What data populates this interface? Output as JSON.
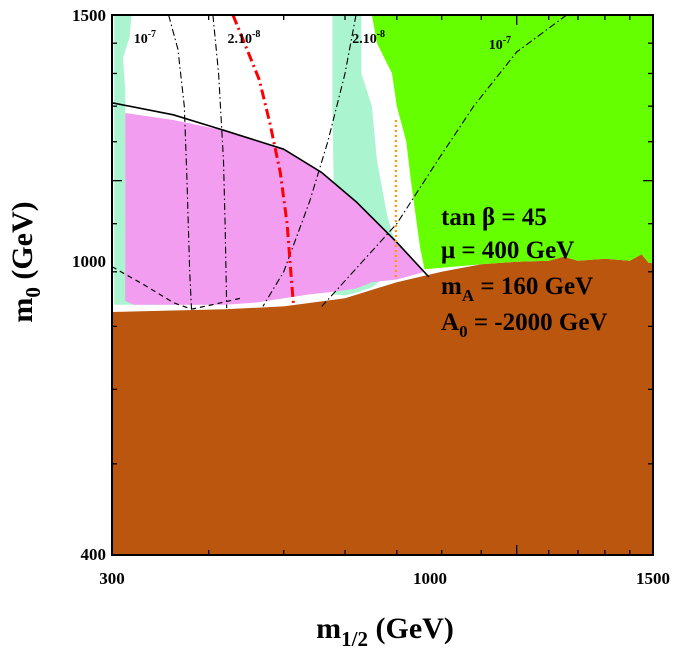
{
  "chart_data": {
    "type": "contour",
    "title": "",
    "xlabel": {
      "main": "m",
      "sub": "1/2",
      "rest": " (GeV)"
    },
    "ylabel": {
      "main": "m",
      "sub": "0",
      "rest": " (GeV)"
    },
    "xscale": "log",
    "yscale": "log",
    "xlim": [
      300,
      1500
    ],
    "ylim": [
      400,
      1500
    ],
    "x_tick_labels": [
      "300",
      "1000",
      "1500"
    ],
    "y_tick_labels": [
      "400",
      "1000",
      "1500"
    ],
    "x_minor_ticks": [
      400,
      500,
      600,
      700,
      800,
      900,
      1100,
      1200,
      1300,
      1400
    ],
    "y_minor_ticks": [
      500,
      600,
      700,
      800,
      900,
      1100,
      1200,
      1300,
      1400
    ],
    "parameters": [
      {
        "text": "tan β = 45"
      },
      {
        "main": "μ = 400 GeV"
      },
      {
        "main": "m",
        "sub": "A",
        "rest": " = 160 GeV"
      },
      {
        "main": "A",
        "sub": "0",
        "rest": " = -2000 GeV"
      }
    ],
    "colors": {
      "excluded_brown": "#bb560e",
      "green_region": "#66ff00",
      "light_green_band": "#aaf5cf",
      "pink_region": "#f29df0",
      "red_contour": "#ff0000",
      "orange_contour": "#ff9900",
      "black_contour": "#000000"
    },
    "regions": [
      {
        "name": "brown-excluded",
        "color": "#bb560e",
        "points": [
          [
            300,
            725
          ],
          [
            420,
            730
          ],
          [
            500,
            735
          ],
          [
            600,
            750
          ],
          [
            700,
            780
          ],
          [
            800,
            800
          ],
          [
            900,
            815
          ],
          [
            1000,
            820
          ],
          [
            1100,
            822
          ],
          [
            1150,
            830
          ],
          [
            1200,
            822
          ],
          [
            1300,
            826
          ],
          [
            1400,
            822
          ],
          [
            1450,
            835
          ],
          [
            1480,
            818
          ],
          [
            1500,
            818
          ],
          [
            1500,
            400
          ],
          [
            300,
            400
          ]
        ]
      },
      {
        "name": "light-green-band-left",
        "color": "#aaf5cf",
        "points": [
          [
            302,
            1500
          ],
          [
            318,
            1500
          ],
          [
            316,
            1420
          ],
          [
            310,
            1350
          ],
          [
            312,
            1250
          ],
          [
            312,
            1000
          ],
          [
            312,
            800
          ],
          [
            340,
            745
          ],
          [
            400,
            738
          ],
          [
            420,
            738
          ],
          [
            302,
            738
          ]
        ]
      },
      {
        "name": "light-green-band-mid",
        "color": "#aaf5cf",
        "points": [
          [
            578,
            1500
          ],
          [
            630,
            1500
          ],
          [
            630,
            1300
          ],
          [
            650,
            1200
          ],
          [
            660,
            1050
          ],
          [
            680,
            920
          ],
          [
            690,
            880
          ],
          [
            700,
            860
          ],
          [
            690,
            800
          ],
          [
            650,
            770
          ],
          [
            620,
            760
          ],
          [
            600,
            755
          ],
          [
            580,
            757
          ],
          [
            585,
            830
          ],
          [
            580,
            1000
          ],
          [
            578,
            1200
          ]
        ]
      },
      {
        "name": "green-region",
        "color": "#66ff00",
        "points": [
          [
            650,
            1500
          ],
          [
            1500,
            1500
          ],
          [
            1500,
            818
          ],
          [
            1480,
            818
          ],
          [
            1450,
            835
          ],
          [
            1400,
            822
          ],
          [
            1300,
            826
          ],
          [
            1200,
            822
          ],
          [
            1150,
            830
          ],
          [
            1100,
            822
          ],
          [
            1000,
            820
          ],
          [
            900,
            815
          ],
          [
            760,
            805
          ],
          [
            750,
            850
          ],
          [
            730,
            1000
          ],
          [
            720,
            1100
          ],
          [
            700,
            1200
          ],
          [
            690,
            1300
          ],
          [
            660,
            1400
          ]
        ]
      },
      {
        "name": "pink-region",
        "color": "#f29df0",
        "points": [
          [
            312,
            1180
          ],
          [
            360,
            1160
          ],
          [
            420,
            1130
          ],
          [
            500,
            1080
          ],
          [
            560,
            1020
          ],
          [
            620,
            950
          ],
          [
            700,
            860
          ],
          [
            760,
            800
          ],
          [
            740,
            795
          ],
          [
            700,
            785
          ],
          [
            650,
            780
          ],
          [
            620,
            768
          ],
          [
            580,
            762
          ],
          [
            540,
            757
          ],
          [
            500,
            750
          ],
          [
            460,
            742
          ],
          [
            420,
            738
          ],
          [
            360,
            738
          ],
          [
            320,
            738
          ],
          [
            312,
            745
          ],
          [
            312,
            900
          ]
        ]
      }
    ],
    "curves": [
      {
        "name": "black-solid-boundary",
        "style": "solid",
        "color": "#000000",
        "points": [
          [
            300,
            1210
          ],
          [
            360,
            1175
          ],
          [
            420,
            1130
          ],
          [
            500,
            1080
          ],
          [
            560,
            1020
          ],
          [
            620,
            950
          ],
          [
            700,
            860
          ],
          [
            770,
            790
          ]
        ]
      },
      {
        "name": "black-dashed-lower",
        "style": "dashed",
        "color": "#000000",
        "points": [
          [
            300,
            810
          ],
          [
            330,
            775
          ],
          [
            360,
            742
          ],
          [
            380,
            730
          ],
          [
            410,
            740
          ],
          [
            440,
            750
          ]
        ]
      },
      {
        "name": "contour-1e-7-left",
        "style": "dashdot",
        "color": "#000000",
        "label": "10^-7",
        "points": [
          [
            355,
            1500
          ],
          [
            365,
            1380
          ],
          [
            372,
            1200
          ],
          [
            375,
            1000
          ],
          [
            378,
            800
          ],
          [
            380,
            730
          ]
        ]
      },
      {
        "name": "contour-2e-8-left",
        "style": "dashdot",
        "color": "#000000",
        "label": "2.10^-8",
        "points": [
          [
            405,
            1500
          ],
          [
            412,
            1300
          ],
          [
            418,
            1050
          ],
          [
            420,
            900
          ],
          [
            422,
            732
          ]
        ]
      },
      {
        "name": "contour-2e-8-right",
        "style": "dashdot",
        "color": "#000000",
        "label": "2.10^-8",
        "points": [
          [
            620,
            1500
          ],
          [
            600,
            1300
          ],
          [
            570,
            1100
          ],
          [
            540,
            950
          ],
          [
            500,
            800
          ],
          [
            470,
            735
          ]
        ]
      },
      {
        "name": "contour-1e-7-right",
        "style": "dashdot",
        "color": "#000000",
        "label": "10^-7",
        "points": [
          [
            1160,
            1500
          ],
          [
            1000,
            1370
          ],
          [
            880,
            1200
          ],
          [
            790,
            1050
          ],
          [
            700,
            900
          ],
          [
            560,
            735
          ]
        ]
      },
      {
        "name": "red-dashdot-contour",
        "style": "dashdot-thick",
        "color": "#ff0000",
        "points": [
          [
            430,
            1500
          ],
          [
            445,
            1400
          ],
          [
            465,
            1280
          ],
          [
            480,
            1150
          ],
          [
            495,
            1020
          ],
          [
            505,
            900
          ],
          [
            510,
            810
          ],
          [
            515,
            735
          ]
        ]
      },
      {
        "name": "orange-dotted-line",
        "style": "dotted",
        "color": "#ff9900",
        "points": [
          [
            698,
            1160
          ],
          [
            698,
            1000
          ],
          [
            698,
            900
          ],
          [
            698,
            790
          ]
        ]
      }
    ],
    "contour_labels": [
      {
        "text": "10",
        "exp": "-7",
        "x": 320,
        "y": 1400
      },
      {
        "text": "2.10",
        "exp": "-8",
        "x": 423,
        "y": 1400
      },
      {
        "text": "2.10",
        "exp": "-8",
        "x": 613,
        "y": 1400
      },
      {
        "text": "10",
        "exp": "-7",
        "x": 920,
        "y": 1380
      }
    ]
  }
}
